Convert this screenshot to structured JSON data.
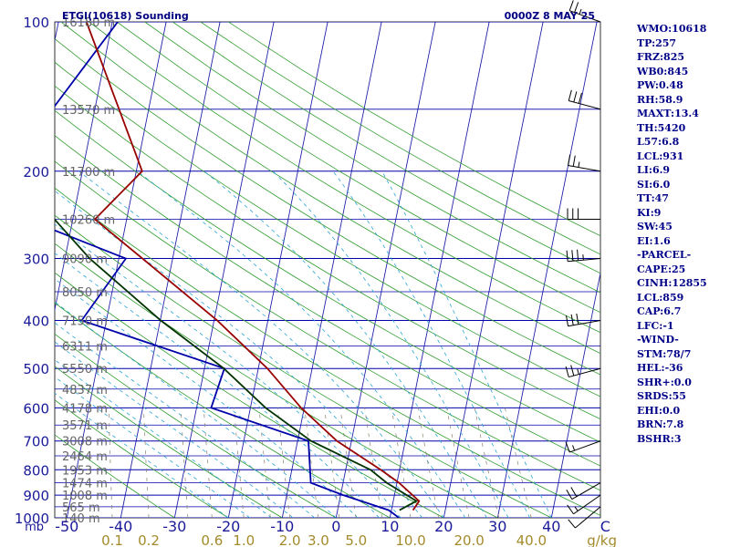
{
  "chart_data": {
    "type": "skew-t",
    "title": "ETGI(10618) Sounding",
    "datetime": "0000Z  8 MAY 25",
    "x_unit_label": "mb",
    "mixing_unit_label": "g/kg",
    "pressure_ticks": [
      100,
      200,
      300,
      400,
      500,
      600,
      700,
      800,
      900,
      1000
    ],
    "temperature_ticks": [
      -50,
      -40,
      -30,
      -20,
      -10,
      0,
      10,
      20,
      30,
      40
    ],
    "temperature_tick_labels": [
      "-50",
      "-40",
      "-30",
      "-20",
      "-10",
      "0",
      "10",
      "20",
      "30",
      "40",
      "C"
    ],
    "mixing_ratio_labels": [
      "0.1",
      "0.2",
      "0.6",
      "1.0",
      "2.0",
      "3.0",
      "5.0",
      "10.0",
      "20.0",
      "40.0"
    ],
    "heights": [
      {
        "p": 100,
        "label": "16180 m"
      },
      {
        "p": 150,
        "label": "13570 m"
      },
      {
        "p": 200,
        "label": "11700 m"
      },
      {
        "p": 250,
        "label": "10260 m"
      },
      {
        "p": 300,
        "label": "9090 m"
      },
      {
        "p": 350,
        "label": "8050 m"
      },
      {
        "p": 400,
        "label": "7150 m"
      },
      {
        "p": 450,
        "label": "6311 m"
      },
      {
        "p": 500,
        "label": "5550 m"
      },
      {
        "p": 550,
        "label": "4837 m"
      },
      {
        "p": 600,
        "label": "4178 m"
      },
      {
        "p": 650,
        "label": "3571 m"
      },
      {
        "p": 700,
        "label": "3008 m"
      },
      {
        "p": 750,
        "label": "2464 m"
      },
      {
        "p": 800,
        "label": "1953 m"
      },
      {
        "p": 850,
        "label": "1474 m"
      },
      {
        "p": 900,
        "label": "1008 m"
      },
      {
        "p": 950,
        "label": "565 m"
      },
      {
        "p": 1000,
        "label": "140 m"
      }
    ],
    "temperature": [
      {
        "p": 965,
        "t": 14.0
      },
      {
        "p": 925,
        "t": 14.8
      },
      {
        "p": 850,
        "t": 10.4
      },
      {
        "p": 800,
        "t": 6.5
      },
      {
        "p": 700,
        "t": -2.7
      },
      {
        "p": 600,
        "t": -10.6
      },
      {
        "p": 500,
        "t": -18.3
      },
      {
        "p": 400,
        "t": -29.4
      },
      {
        "p": 300,
        "t": -45.6
      },
      {
        "p": 250,
        "t": -55.9
      },
      {
        "p": 200,
        "t": -48.9
      },
      {
        "p": 100,
        "t": -64.8
      }
    ],
    "dewpoint": [
      {
        "p": 965,
        "t": 11.5
      },
      {
        "p": 925,
        "t": 14.3
      },
      {
        "p": 850,
        "t": 8.1
      },
      {
        "p": 800,
        "t": 4.6
      },
      {
        "p": 700,
        "t": -7.5
      },
      {
        "p": 600,
        "t": -17.2
      },
      {
        "p": 500,
        "t": -26.4
      },
      {
        "p": 400,
        "t": -39.9
      },
      {
        "p": 300,
        "t": -55.4
      },
      {
        "p": 200,
        "t": -73.2
      },
      {
        "p": 125,
        "t": -87.4
      }
    ],
    "parcel": [
      {
        "p": 1000,
        "t": 11.7
      },
      {
        "p": 965,
        "t": 9.5
      },
      {
        "p": 900,
        "t": 0.5
      },
      {
        "p": 850,
        "t": -6.0
      },
      {
        "p": 700,
        "t": -8.0
      },
      {
        "p": 600,
        "t": -27.3
      },
      {
        "p": 500,
        "t": -26.3
      },
      {
        "p": 400,
        "t": -54.6
      },
      {
        "p": 300,
        "t": -48.7
      },
      {
        "p": 250,
        "t": -68.6
      },
      {
        "p": 200,
        "t": -73.2
      },
      {
        "p": 150,
        "t": -67.9
      },
      {
        "p": 100,
        "t": -59.0
      }
    ],
    "wind_barbs": [
      {
        "p": 100,
        "dir": 290,
        "kt": 25
      },
      {
        "p": 150,
        "dir": 285,
        "kt": 30
      },
      {
        "p": 200,
        "dir": 280,
        "kt": 25
      },
      {
        "p": 250,
        "dir": 270,
        "kt": 30
      },
      {
        "p": 300,
        "dir": 265,
        "kt": 35
      },
      {
        "p": 400,
        "dir": 260,
        "kt": 30
      },
      {
        "p": 500,
        "dir": 255,
        "kt": 25
      },
      {
        "p": 700,
        "dir": 250,
        "kt": 15
      },
      {
        "p": 850,
        "dir": 240,
        "kt": 20
      },
      {
        "p": 900,
        "dir": 235,
        "kt": 15
      },
      {
        "p": 950,
        "dir": 230,
        "kt": 10
      }
    ],
    "indices": [
      "WMO:10618",
      "TP:257",
      "FRZ:825",
      "WB0:845",
      "PW:0.48",
      "RH:58.9",
      "MAXT:13.4",
      "TH:5420",
      "L57:6.8",
      "LCL:931",
      "LI:6.9",
      "SI:6.0",
      "TT:47",
      "KI:9",
      "SW:45",
      "EI:1.6",
      "-PARCEL-",
      "CAPE:25",
      "CINH:12855",
      "LCL:859",
      "CAP:6.7",
      "LFC:-1",
      "-WIND-",
      "STM:78/7",
      "HEL:-36",
      "SHR+:0.0",
      "SRDS:55",
      "EHI:0.0",
      "BRN:7.8",
      "BSHR:3"
    ],
    "colors": {
      "isobar": "#0000aa",
      "isotherm": "#2222aa",
      "dry_adiabat": "#2f9c2f",
      "moist_adiabat": "#2aa5d6",
      "mixing_ratio": "#8a7f6a",
      "temperature": "#990000",
      "dewpoint": "#003300",
      "parcel": "#0000aa",
      "label_gray": "#666666",
      "wind": "#000000",
      "mixing_label": "#a38b2c",
      "indices_text": "#000088"
    }
  }
}
